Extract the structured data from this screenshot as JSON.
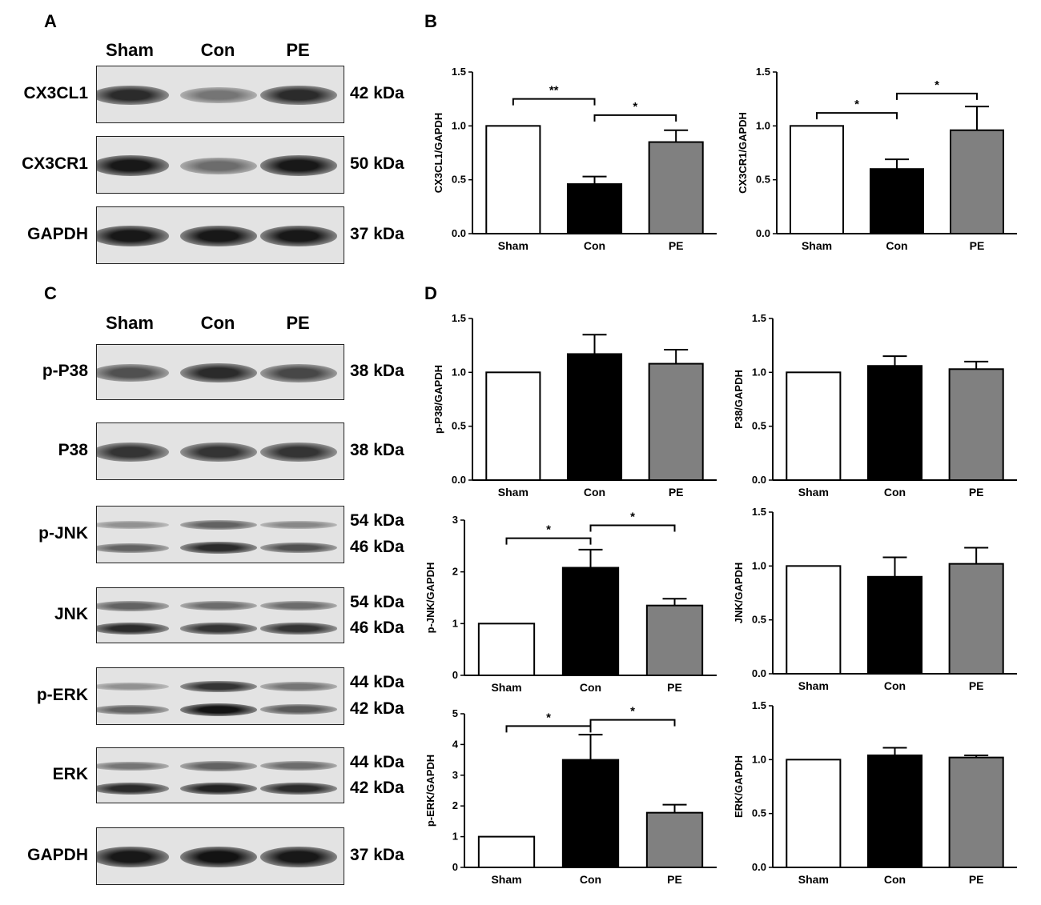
{
  "panels": {
    "A": "A",
    "B": "B",
    "C": "C",
    "D": "D"
  },
  "lanes": [
    "Sham",
    "Con",
    "PE"
  ],
  "blots_A": [
    {
      "protein": "CX3CL1",
      "kda": [
        "42 kDa"
      ],
      "bands": [
        [
          0.85,
          0.45,
          0.85
        ]
      ]
    },
    {
      "protein": "CX3CR1",
      "kda": [
        "50 kDa"
      ],
      "bands": [
        [
          0.95,
          0.5,
          0.95
        ]
      ]
    },
    {
      "protein": "GAPDH",
      "kda": [
        "37 kDa"
      ],
      "bands": [
        [
          0.95,
          0.95,
          0.95
        ]
      ]
    }
  ],
  "blots_C": [
    {
      "protein": "p-P38",
      "kda": [
        "38 kDa"
      ],
      "bands": [
        [
          0.65,
          0.85,
          0.7
        ]
      ]
    },
    {
      "protein": "P38",
      "kda": [
        "38 kDa"
      ],
      "bands": [
        [
          0.8,
          0.8,
          0.8
        ]
      ]
    },
    {
      "protein": "p-JNK",
      "kda": [
        "54 kDa",
        "46 kDa"
      ],
      "bands": [
        [
          0.3,
          0.55,
          0.35
        ],
        [
          0.55,
          0.85,
          0.65
        ]
      ]
    },
    {
      "protein": "JNK",
      "kda": [
        "54 kDa",
        "46 kDa"
      ],
      "bands": [
        [
          0.55,
          0.5,
          0.5
        ],
        [
          0.85,
          0.8,
          0.8
        ]
      ]
    },
    {
      "protein": "p-ERK",
      "kda": [
        "44 kDa",
        "42 kDa"
      ],
      "bands": [
        [
          0.3,
          0.8,
          0.45
        ],
        [
          0.55,
          0.98,
          0.6
        ]
      ]
    },
    {
      "protein": "ERK",
      "kda": [
        "44 kDa",
        "42 kDa"
      ],
      "bands": [
        [
          0.45,
          0.55,
          0.5
        ],
        [
          0.85,
          0.9,
          0.85
        ]
      ]
    },
    {
      "protein": "GAPDH",
      "kda": [
        "37 kDa"
      ],
      "bands": [
        [
          0.95,
          0.98,
          0.95
        ]
      ]
    }
  ],
  "colors": {
    "Sham": "#ffffff",
    "Con": "#000000",
    "PE": "#808080"
  },
  "chart_data": [
    {
      "type": "bar",
      "ylabel": "CX3CL1/GAPDH",
      "categories": [
        "Sham",
        "Con",
        "PE"
      ],
      "values": [
        1.0,
        0.46,
        0.85
      ],
      "errors": [
        0,
        0.07,
        0.11
      ],
      "ylim": [
        0,
        1.5
      ],
      "yticks": [
        "0.0",
        "0.5",
        "1.0",
        "1.5"
      ],
      "sig": [
        {
          "from": 0,
          "to": 1,
          "label": "**",
          "y": 1.25
        },
        {
          "from": 1,
          "to": 2,
          "label": "*",
          "y": 1.1
        }
      ]
    },
    {
      "type": "bar",
      "ylabel": "CX3CR1/GAPDH",
      "categories": [
        "Sham",
        "Con",
        "PE"
      ],
      "values": [
        1.0,
        0.6,
        0.96
      ],
      "errors": [
        0,
        0.09,
        0.22
      ],
      "ylim": [
        0,
        1.5
      ],
      "yticks": [
        "0.0",
        "0.5",
        "1.0",
        "1.5"
      ],
      "sig": [
        {
          "from": 0,
          "to": 1,
          "label": "*",
          "y": 1.12
        },
        {
          "from": 1,
          "to": 2,
          "label": "*",
          "y": 1.3
        }
      ]
    },
    {
      "type": "bar",
      "ylabel": "p-P38/GAPDH",
      "categories": [
        "Sham",
        "Con",
        "PE"
      ],
      "values": [
        1.0,
        1.17,
        1.08
      ],
      "errors": [
        0,
        0.18,
        0.13
      ],
      "ylim": [
        0,
        1.5
      ],
      "yticks": [
        "0.0",
        "0.5",
        "1.0",
        "1.5"
      ],
      "sig": []
    },
    {
      "type": "bar",
      "ylabel": "P38/GAPDH",
      "categories": [
        "Sham",
        "Con",
        "PE"
      ],
      "values": [
        1.0,
        1.06,
        1.03
      ],
      "errors": [
        0,
        0.09,
        0.07
      ],
      "ylim": [
        0,
        1.5
      ],
      "yticks": [
        "0.0",
        "0.5",
        "1.0",
        "1.5"
      ],
      "sig": []
    },
    {
      "type": "bar",
      "ylabel": "p-JNK/GAPDH",
      "categories": [
        "Sham",
        "Con",
        "PE"
      ],
      "values": [
        1.0,
        2.08,
        1.35
      ],
      "errors": [
        0,
        0.35,
        0.13
      ],
      "ylim": [
        0,
        3
      ],
      "yticks": [
        "0",
        "1",
        "2",
        "3"
      ],
      "sig": [
        {
          "from": 0,
          "to": 1,
          "label": "*",
          "y": 2.65
        },
        {
          "from": 1,
          "to": 2,
          "label": "*",
          "y": 2.9
        }
      ]
    },
    {
      "type": "bar",
      "ylabel": "JNK/GAPDH",
      "categories": [
        "Sham",
        "Con",
        "PE"
      ],
      "values": [
        1.0,
        0.9,
        1.02
      ],
      "errors": [
        0,
        0.18,
        0.15
      ],
      "ylim": [
        0,
        1.5
      ],
      "yticks": [
        "0.0",
        "0.5",
        "1.0",
        "1.5"
      ],
      "sig": []
    },
    {
      "type": "bar",
      "ylabel": "p-ERK/GAPDH",
      "categories": [
        "Sham",
        "Con",
        "PE"
      ],
      "values": [
        1.0,
        3.5,
        1.78
      ],
      "errors": [
        0,
        0.82,
        0.26
      ],
      "ylim": [
        0,
        5
      ],
      "yticks": [
        "0",
        "1",
        "2",
        "3",
        "4",
        "5"
      ],
      "sig": [
        {
          "from": 0,
          "to": 1,
          "label": "*",
          "y": 4.6
        },
        {
          "from": 1,
          "to": 2,
          "label": "*",
          "y": 4.8
        }
      ]
    },
    {
      "type": "bar",
      "ylabel": "ERK/GAPDH",
      "categories": [
        "Sham",
        "Con",
        "PE"
      ],
      "values": [
        1.0,
        1.04,
        1.02
      ],
      "errors": [
        0,
        0.07,
        0.02
      ],
      "ylim": [
        0,
        1.5
      ],
      "yticks": [
        "0.0",
        "0.5",
        "1.0",
        "1.5"
      ],
      "sig": []
    }
  ]
}
